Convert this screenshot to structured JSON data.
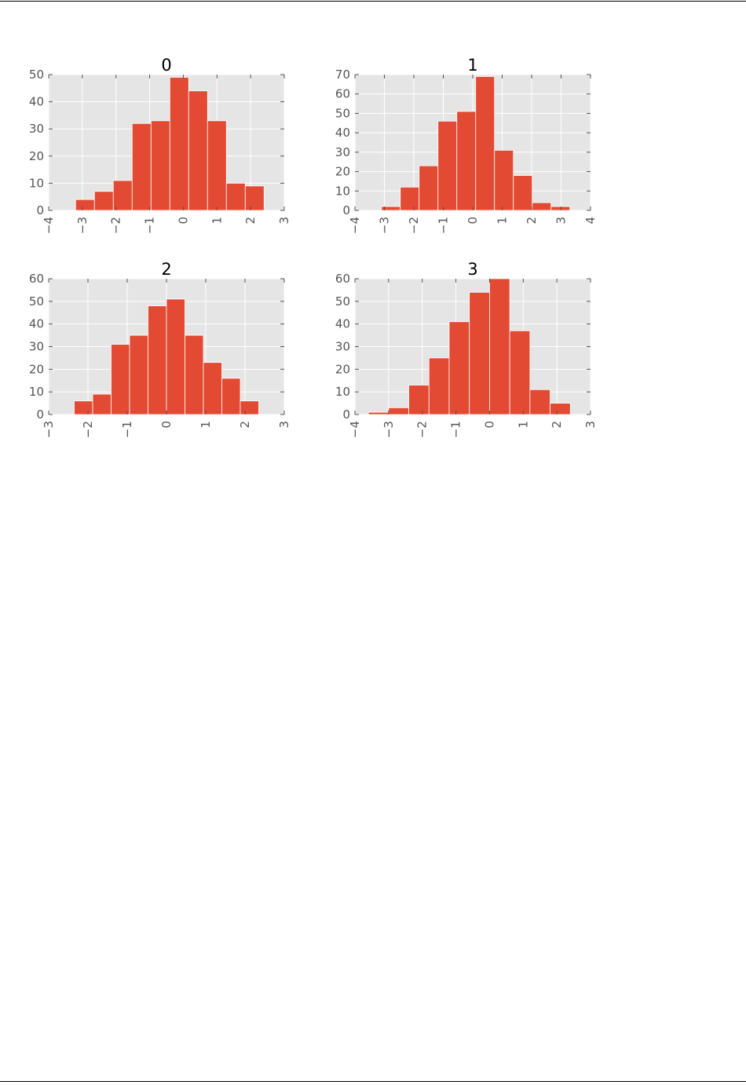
{
  "colors": {
    "bar": "#E24A33",
    "bar_edge": "#ffffff",
    "panel_bg": "#E5E5E5",
    "grid": "#ffffff",
    "tick_text": "#555555",
    "title_text": "#000000"
  },
  "chart_data": [
    {
      "type": "bar",
      "title": "0",
      "bin_edges": [
        -3.2,
        -2.64,
        -2.08,
        -1.52,
        -0.96,
        -0.4,
        0.16,
        0.72,
        1.28,
        1.84,
        2.4
      ],
      "values": [
        4,
        7,
        11,
        32,
        33,
        49,
        44,
        33,
        10,
        9
      ],
      "xlim": [
        -4,
        3
      ],
      "ylim": [
        0,
        50
      ],
      "xticks": [
        "−4",
        "−3",
        "−2",
        "−1",
        "0",
        "1",
        "2",
        "3"
      ],
      "yticks": [
        "0",
        "10",
        "20",
        "30",
        "40",
        "50"
      ],
      "grid": true
    },
    {
      "type": "bar",
      "title": "1",
      "bin_edges": [
        -3.1,
        -2.46,
        -1.82,
        -1.18,
        -0.54,
        0.1,
        0.74,
        1.38,
        2.02,
        2.66,
        3.3
      ],
      "values": [
        2,
        12,
        23,
        46,
        51,
        69,
        31,
        18,
        4,
        2
      ],
      "xlim": [
        -4,
        4
      ],
      "ylim": [
        0,
        70
      ],
      "xticks": [
        "−4",
        "−3",
        "−2",
        "−1",
        "0",
        "1",
        "2",
        "3",
        "4"
      ],
      "yticks": [
        "0",
        "10",
        "20",
        "30",
        "40",
        "50",
        "60",
        "70"
      ],
      "grid": true
    },
    {
      "type": "bar",
      "title": "2",
      "bin_edges": [
        -2.35,
        -1.88,
        -1.41,
        -0.94,
        -0.47,
        0.0,
        0.47,
        0.94,
        1.41,
        1.88,
        2.35
      ],
      "values": [
        6,
        9,
        31,
        35,
        48,
        51,
        35,
        23,
        16,
        6
      ],
      "xlim": [
        -3,
        3
      ],
      "ylim": [
        0,
        60
      ],
      "xticks": [
        "−3",
        "−2",
        "−1",
        "0",
        "1",
        "2",
        "3"
      ],
      "yticks": [
        "0",
        "10",
        "20",
        "30",
        "40",
        "50",
        "60"
      ],
      "grid": true
    },
    {
      "type": "bar",
      "title": "3",
      "bin_edges": [
        -3.6,
        -3.0,
        -2.4,
        -1.8,
        -1.2,
        -0.6,
        0.0,
        0.6,
        1.2,
        1.8,
        2.4
      ],
      "values": [
        1,
        3,
        13,
        25,
        41,
        54,
        60,
        37,
        11,
        5
      ],
      "xlim": [
        -4,
        3
      ],
      "ylim": [
        0,
        60
      ],
      "xticks": [
        "−4",
        "−3",
        "−2",
        "−1",
        "0",
        "1",
        "2",
        "3"
      ],
      "yticks": [
        "0",
        "10",
        "20",
        "30",
        "40",
        "50",
        "60"
      ],
      "grid": true
    }
  ]
}
